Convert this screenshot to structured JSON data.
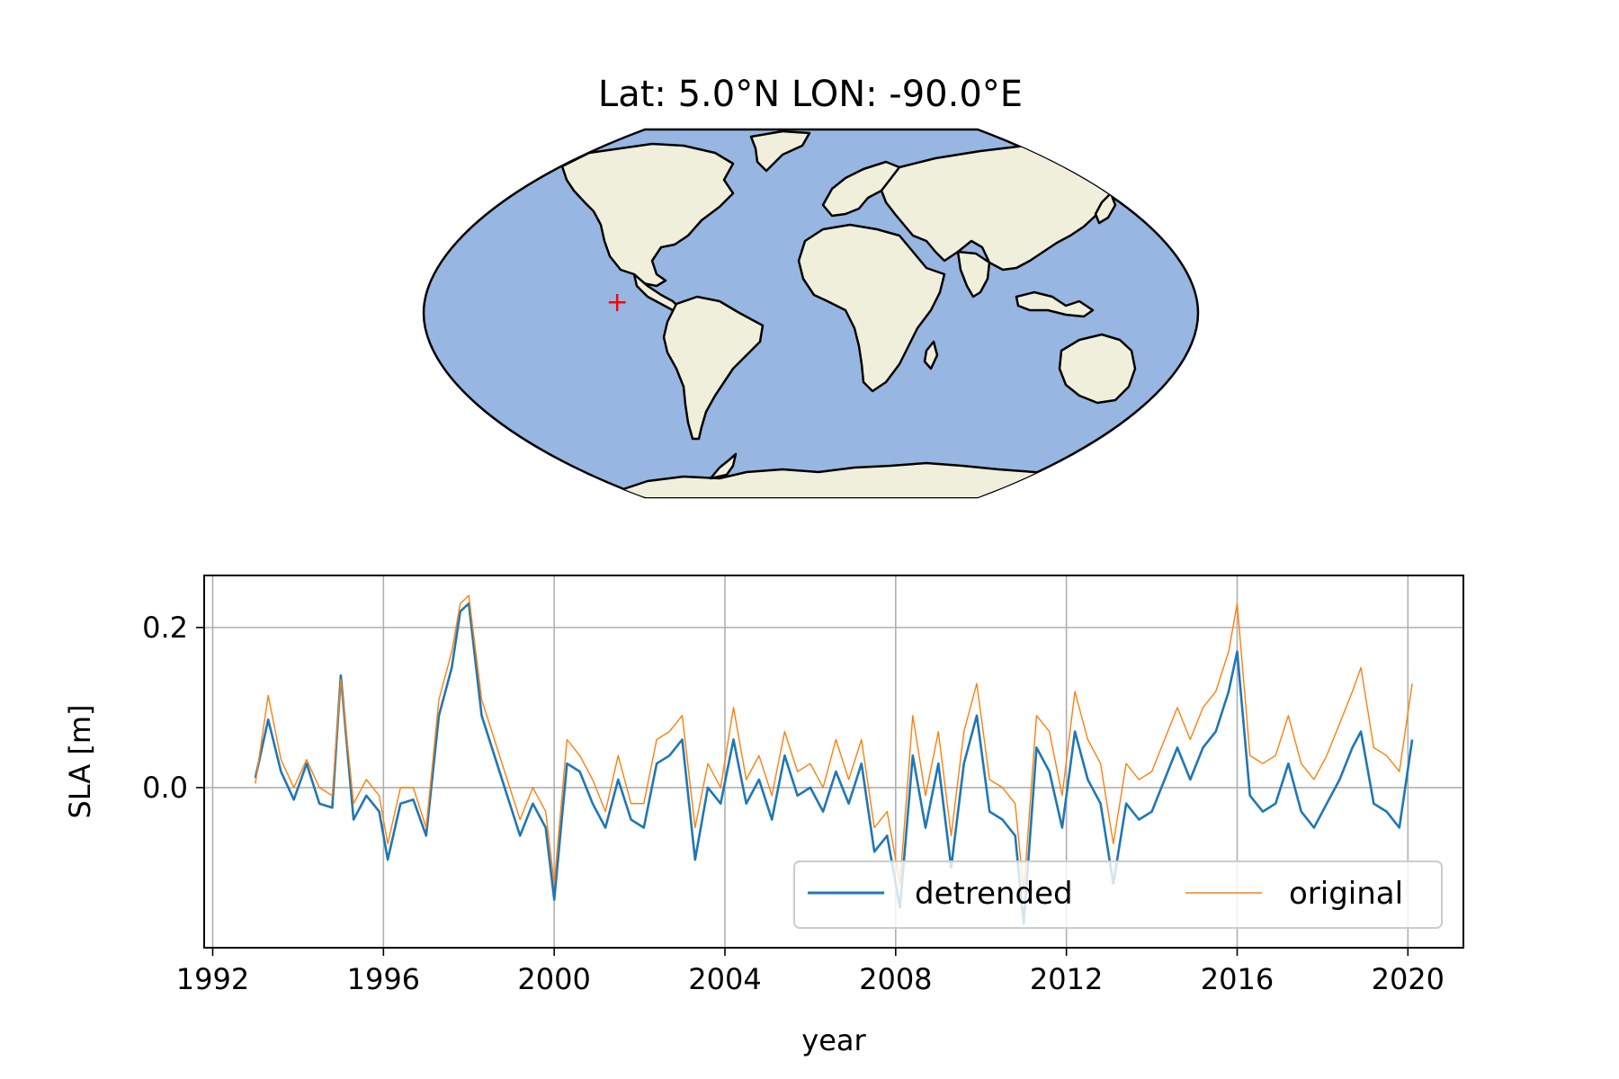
{
  "map": {
    "title": "Lat: 5.0°N LON: -90.0°E",
    "marker": {
      "lat": 5.0,
      "lon": -90.0,
      "symbol": "+",
      "color": "#ff0000"
    },
    "projection": "robinson",
    "ocean_color": "#97b6e1",
    "land_color": "#efefdb"
  },
  "chart_data": {
    "type": "line",
    "xlabel": "year",
    "ylabel": "SLA [m]",
    "xlim": [
      1991.8,
      2021.3
    ],
    "ylim": [
      -0.2,
      0.265
    ],
    "xticks": [
      1992,
      1996,
      2000,
      2004,
      2008,
      2012,
      2016,
      2020
    ],
    "xtick_labels": [
      "1992",
      "1996",
      "2000",
      "2004",
      "2008",
      "2012",
      "2016",
      "2020"
    ],
    "yticks": [
      0.0,
      0.2
    ],
    "ytick_labels": [
      "0.0",
      "0.2"
    ],
    "grid": true,
    "legend": {
      "position": "lower-right",
      "columns": 2
    },
    "series": [
      {
        "name": "detrended",
        "color": "#1f77b4",
        "points": [
          [
            1993.0,
            0.012
          ],
          [
            1993.3,
            0.085
          ],
          [
            1993.6,
            0.02
          ],
          [
            1993.9,
            -0.015
          ],
          [
            1994.2,
            0.03
          ],
          [
            1994.5,
            -0.02
          ],
          [
            1994.8,
            -0.025
          ],
          [
            1995.0,
            0.14
          ],
          [
            1995.3,
            -0.04
          ],
          [
            1995.6,
            -0.01
          ],
          [
            1995.9,
            -0.03
          ],
          [
            1996.1,
            -0.09
          ],
          [
            1996.4,
            -0.02
          ],
          [
            1996.7,
            -0.015
          ],
          [
            1997.0,
            -0.06
          ],
          [
            1997.3,
            0.09
          ],
          [
            1997.6,
            0.15
          ],
          [
            1997.8,
            0.22
          ],
          [
            1998.0,
            0.23
          ],
          [
            1998.3,
            0.09
          ],
          [
            1998.6,
            0.04
          ],
          [
            1998.9,
            -0.01
          ],
          [
            1999.2,
            -0.06
          ],
          [
            1999.5,
            -0.02
          ],
          [
            1999.8,
            -0.05
          ],
          [
            2000.0,
            -0.14
          ],
          [
            2000.3,
            0.03
          ],
          [
            2000.6,
            0.02
          ],
          [
            2000.9,
            -0.02
          ],
          [
            2001.2,
            -0.05
          ],
          [
            2001.5,
            0.01
          ],
          [
            2001.8,
            -0.04
          ],
          [
            2002.1,
            -0.05
          ],
          [
            2002.4,
            0.03
          ],
          [
            2002.7,
            0.04
          ],
          [
            2003.0,
            0.06
          ],
          [
            2003.3,
            -0.09
          ],
          [
            2003.6,
            0.0
          ],
          [
            2003.9,
            -0.02
          ],
          [
            2004.2,
            0.06
          ],
          [
            2004.5,
            -0.02
          ],
          [
            2004.8,
            0.01
          ],
          [
            2005.1,
            -0.04
          ],
          [
            2005.4,
            0.04
          ],
          [
            2005.7,
            -0.01
          ],
          [
            2006.0,
            0.0
          ],
          [
            2006.3,
            -0.03
          ],
          [
            2006.6,
            0.02
          ],
          [
            2006.9,
            -0.02
          ],
          [
            2007.2,
            0.03
          ],
          [
            2007.5,
            -0.08
          ],
          [
            2007.8,
            -0.06
          ],
          [
            2008.1,
            -0.15
          ],
          [
            2008.4,
            0.04
          ],
          [
            2008.7,
            -0.05
          ],
          [
            2009.0,
            0.03
          ],
          [
            2009.3,
            -0.1
          ],
          [
            2009.6,
            0.03
          ],
          [
            2009.9,
            0.09
          ],
          [
            2010.2,
            -0.03
          ],
          [
            2010.5,
            -0.04
          ],
          [
            2010.8,
            -0.06
          ],
          [
            2011.0,
            -0.17
          ],
          [
            2011.3,
            0.05
          ],
          [
            2011.6,
            0.02
          ],
          [
            2011.9,
            -0.05
          ],
          [
            2012.2,
            0.07
          ],
          [
            2012.5,
            0.01
          ],
          [
            2012.8,
            -0.02
          ],
          [
            2013.1,
            -0.12
          ],
          [
            2013.4,
            -0.02
          ],
          [
            2013.7,
            -0.04
          ],
          [
            2014.0,
            -0.03
          ],
          [
            2014.3,
            0.01
          ],
          [
            2014.6,
            0.05
          ],
          [
            2014.9,
            0.01
          ],
          [
            2015.2,
            0.05
          ],
          [
            2015.5,
            0.07
          ],
          [
            2015.8,
            0.12
          ],
          [
            2016.0,
            0.17
          ],
          [
            2016.3,
            -0.01
          ],
          [
            2016.6,
            -0.03
          ],
          [
            2016.9,
            -0.02
          ],
          [
            2017.2,
            0.03
          ],
          [
            2017.5,
            -0.03
          ],
          [
            2017.8,
            -0.05
          ],
          [
            2018.1,
            -0.02
          ],
          [
            2018.4,
            0.01
          ],
          [
            2018.7,
            0.05
          ],
          [
            2018.9,
            0.07
          ],
          [
            2019.2,
            -0.02
          ],
          [
            2019.5,
            -0.03
          ],
          [
            2019.8,
            -0.05
          ],
          [
            2020.1,
            0.06
          ]
        ]
      },
      {
        "name": "original",
        "color": "#ff7f0e",
        "points": [
          [
            1993.0,
            0.005
          ],
          [
            1993.3,
            0.115
          ],
          [
            1993.6,
            0.035
          ],
          [
            1993.9,
            0.0
          ],
          [
            1994.2,
            0.035
          ],
          [
            1994.5,
            0.0
          ],
          [
            1994.8,
            -0.01
          ],
          [
            1995.0,
            0.135
          ],
          [
            1995.3,
            -0.02
          ],
          [
            1995.6,
            0.01
          ],
          [
            1995.9,
            -0.01
          ],
          [
            1996.1,
            -0.07
          ],
          [
            1996.4,
            0.0
          ],
          [
            1996.7,
            0.0
          ],
          [
            1997.0,
            -0.05
          ],
          [
            1997.3,
            0.11
          ],
          [
            1997.6,
            0.17
          ],
          [
            1997.8,
            0.23
          ],
          [
            1998.0,
            0.24
          ],
          [
            1998.3,
            0.11
          ],
          [
            1998.6,
            0.06
          ],
          [
            1998.9,
            0.01
          ],
          [
            1999.2,
            -0.04
          ],
          [
            1999.5,
            0.0
          ],
          [
            1999.8,
            -0.03
          ],
          [
            2000.0,
            -0.12
          ],
          [
            2000.3,
            0.06
          ],
          [
            2000.6,
            0.04
          ],
          [
            2000.9,
            0.01
          ],
          [
            2001.2,
            -0.03
          ],
          [
            2001.5,
            0.04
          ],
          [
            2001.8,
            -0.02
          ],
          [
            2002.1,
            -0.02
          ],
          [
            2002.4,
            0.06
          ],
          [
            2002.7,
            0.07
          ],
          [
            2003.0,
            0.09
          ],
          [
            2003.3,
            -0.05
          ],
          [
            2003.6,
            0.03
          ],
          [
            2003.9,
            0.0
          ],
          [
            2004.2,
            0.1
          ],
          [
            2004.5,
            0.01
          ],
          [
            2004.8,
            0.04
          ],
          [
            2005.1,
            -0.01
          ],
          [
            2005.4,
            0.07
          ],
          [
            2005.7,
            0.02
          ],
          [
            2006.0,
            0.03
          ],
          [
            2006.3,
            0.0
          ],
          [
            2006.6,
            0.06
          ],
          [
            2006.9,
            0.01
          ],
          [
            2007.2,
            0.06
          ],
          [
            2007.5,
            -0.05
          ],
          [
            2007.8,
            -0.03
          ],
          [
            2008.1,
            -0.12
          ],
          [
            2008.4,
            0.09
          ],
          [
            2008.7,
            -0.01
          ],
          [
            2009.0,
            0.07
          ],
          [
            2009.3,
            -0.06
          ],
          [
            2009.6,
            0.07
          ],
          [
            2009.9,
            0.13
          ],
          [
            2010.2,
            0.01
          ],
          [
            2010.5,
            0.0
          ],
          [
            2010.8,
            -0.02
          ],
          [
            2011.0,
            -0.13
          ],
          [
            2011.3,
            0.09
          ],
          [
            2011.6,
            0.07
          ],
          [
            2011.9,
            -0.01
          ],
          [
            2012.2,
            0.12
          ],
          [
            2012.5,
            0.06
          ],
          [
            2012.8,
            0.03
          ],
          [
            2013.1,
            -0.07
          ],
          [
            2013.4,
            0.03
          ],
          [
            2013.7,
            0.01
          ],
          [
            2014.0,
            0.02
          ],
          [
            2014.3,
            0.06
          ],
          [
            2014.6,
            0.1
          ],
          [
            2014.9,
            0.06
          ],
          [
            2015.2,
            0.1
          ],
          [
            2015.5,
            0.12
          ],
          [
            2015.8,
            0.17
          ],
          [
            2016.0,
            0.23
          ],
          [
            2016.3,
            0.04
          ],
          [
            2016.6,
            0.03
          ],
          [
            2016.9,
            0.04
          ],
          [
            2017.2,
            0.09
          ],
          [
            2017.5,
            0.03
          ],
          [
            2017.8,
            0.01
          ],
          [
            2018.1,
            0.04
          ],
          [
            2018.4,
            0.08
          ],
          [
            2018.7,
            0.12
          ],
          [
            2018.9,
            0.15
          ],
          [
            2019.2,
            0.05
          ],
          [
            2019.5,
            0.04
          ],
          [
            2019.8,
            0.02
          ],
          [
            2020.1,
            0.13
          ]
        ]
      }
    ]
  }
}
